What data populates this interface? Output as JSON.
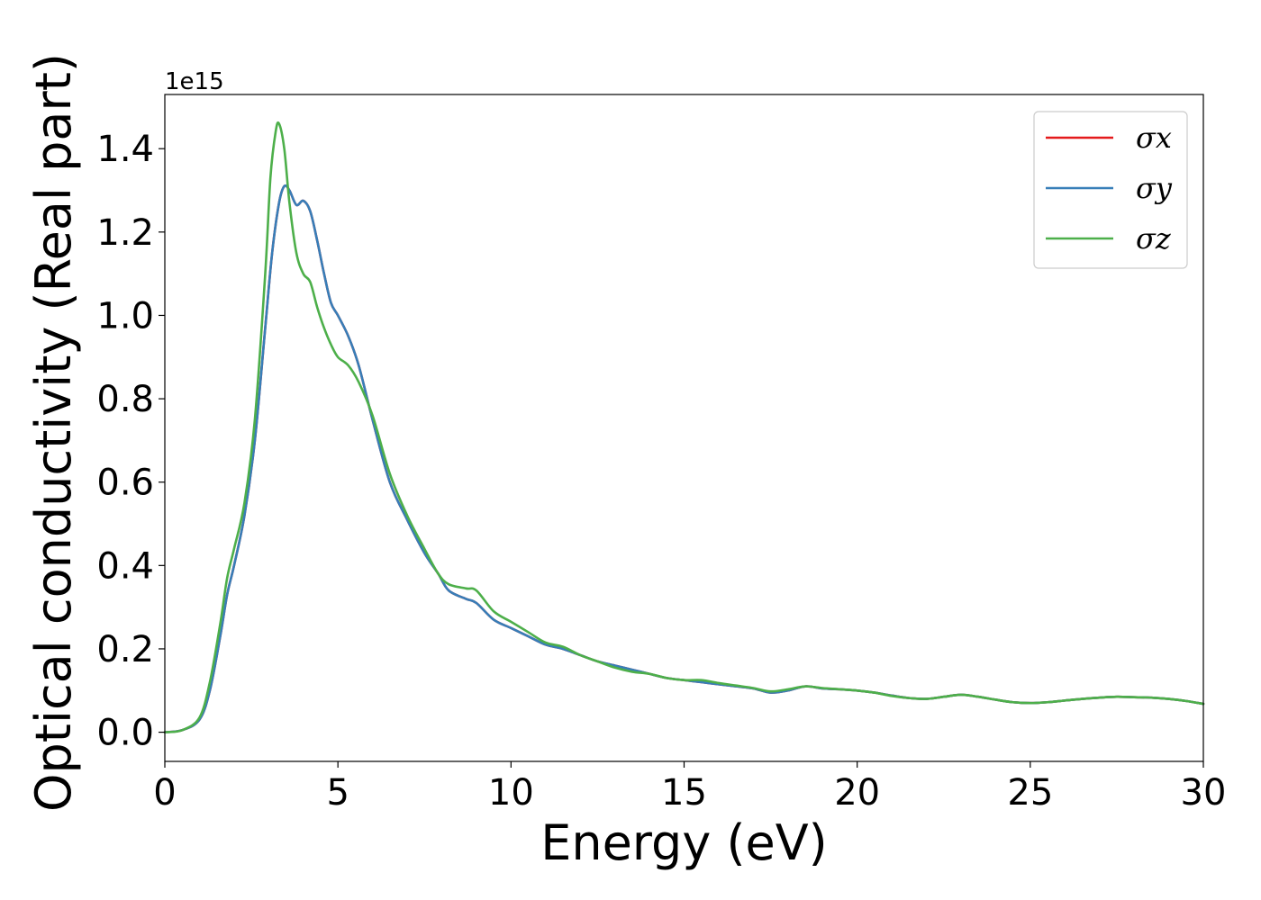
{
  "chart_data": {
    "type": "line",
    "xlabel": "Energy (eV)",
    "ylabel": "Optical conductivity (Real part)",
    "y_offset_label": "1e15",
    "y_scale_factor": 1000000000000000.0,
    "xlim": [
      0,
      30
    ],
    "ylim": [
      -0.07,
      1.53
    ],
    "x_ticks": [
      0,
      5,
      10,
      15,
      20,
      25,
      30
    ],
    "x_tick_labels": [
      "0",
      "5",
      "10",
      "15",
      "20",
      "25",
      "30"
    ],
    "y_ticks": [
      0.0,
      0.2,
      0.4,
      0.6,
      0.8,
      1.0,
      1.2,
      1.4
    ],
    "y_tick_labels": [
      "0.0",
      "0.2",
      "0.4",
      "0.6",
      "0.8",
      "1.0",
      "1.2",
      "1.4"
    ],
    "grid": false,
    "legend_position": "top-right",
    "series": [
      {
        "name": "σx",
        "color": "#e41a1c",
        "x": [
          0,
          0.5,
          1.0,
          1.3,
          1.6,
          1.8,
          2.0,
          2.3,
          2.6,
          2.9,
          3.1,
          3.3,
          3.45,
          3.6,
          3.8,
          4.0,
          4.2,
          4.4,
          4.6,
          4.8,
          5.0,
          5.3,
          5.6,
          6.0,
          6.5,
          7.0,
          7.5,
          7.9,
          8.2,
          8.7,
          9.0,
          9.5,
          10.0,
          10.5,
          11.0,
          11.5,
          12.0,
          12.5,
          13.0,
          13.5,
          14.0,
          14.5,
          15.0,
          15.5,
          16.0,
          16.5,
          17.0,
          17.5,
          18.0,
          18.5,
          19.0,
          19.5,
          20.0,
          20.5,
          21.0,
          21.5,
          22.0,
          22.5,
          23.0,
          23.5,
          24.0,
          24.5,
          25.0,
          25.5,
          26.0,
          26.5,
          27.0,
          27.5,
          28.0,
          28.5,
          29.0,
          29.5,
          30.0
        ],
        "y": [
          0.0,
          0.005,
          0.03,
          0.1,
          0.23,
          0.33,
          0.4,
          0.52,
          0.7,
          0.97,
          1.15,
          1.27,
          1.31,
          1.3,
          1.265,
          1.275,
          1.25,
          1.18,
          1.1,
          1.03,
          1.0,
          0.95,
          0.88,
          0.75,
          0.6,
          0.51,
          0.43,
          0.38,
          0.34,
          0.32,
          0.31,
          0.27,
          0.25,
          0.23,
          0.21,
          0.2,
          0.185,
          0.17,
          0.16,
          0.15,
          0.14,
          0.13,
          0.125,
          0.12,
          0.115,
          0.11,
          0.105,
          0.095,
          0.1,
          0.11,
          0.105,
          0.103,
          0.1,
          0.095,
          0.088,
          0.082,
          0.08,
          0.085,
          0.09,
          0.085,
          0.078,
          0.072,
          0.07,
          0.072,
          0.076,
          0.08,
          0.083,
          0.085,
          0.084,
          0.083,
          0.08,
          0.075,
          0.068
        ]
      },
      {
        "name": "σy",
        "color": "#377eb8",
        "x": [
          0,
          0.5,
          1.0,
          1.3,
          1.6,
          1.8,
          2.0,
          2.3,
          2.6,
          2.9,
          3.1,
          3.3,
          3.45,
          3.6,
          3.8,
          4.0,
          4.2,
          4.4,
          4.6,
          4.8,
          5.0,
          5.3,
          5.6,
          6.0,
          6.5,
          7.0,
          7.5,
          7.9,
          8.2,
          8.7,
          9.0,
          9.5,
          10.0,
          10.5,
          11.0,
          11.5,
          12.0,
          12.5,
          13.0,
          13.5,
          14.0,
          14.5,
          15.0,
          15.5,
          16.0,
          16.5,
          17.0,
          17.5,
          18.0,
          18.5,
          19.0,
          19.5,
          20.0,
          20.5,
          21.0,
          21.5,
          22.0,
          22.5,
          23.0,
          23.5,
          24.0,
          24.5,
          25.0,
          25.5,
          26.0,
          26.5,
          27.0,
          27.5,
          28.0,
          28.5,
          29.0,
          29.5,
          30.0
        ],
        "y": [
          0.0,
          0.005,
          0.03,
          0.1,
          0.23,
          0.33,
          0.4,
          0.52,
          0.7,
          0.97,
          1.15,
          1.27,
          1.31,
          1.3,
          1.265,
          1.275,
          1.25,
          1.18,
          1.1,
          1.03,
          1.0,
          0.95,
          0.88,
          0.75,
          0.6,
          0.51,
          0.43,
          0.38,
          0.34,
          0.32,
          0.31,
          0.27,
          0.25,
          0.23,
          0.21,
          0.2,
          0.185,
          0.17,
          0.16,
          0.15,
          0.14,
          0.13,
          0.125,
          0.12,
          0.115,
          0.11,
          0.105,
          0.095,
          0.1,
          0.11,
          0.105,
          0.103,
          0.1,
          0.095,
          0.088,
          0.082,
          0.08,
          0.085,
          0.09,
          0.085,
          0.078,
          0.072,
          0.07,
          0.072,
          0.076,
          0.08,
          0.083,
          0.085,
          0.084,
          0.083,
          0.08,
          0.075,
          0.068
        ]
      },
      {
        "name": "σz",
        "color": "#4daf4a",
        "x": [
          0,
          0.5,
          1.0,
          1.3,
          1.6,
          1.8,
          2.0,
          2.3,
          2.6,
          2.9,
          3.05,
          3.2,
          3.3,
          3.45,
          3.6,
          3.8,
          4.0,
          4.2,
          4.4,
          4.6,
          4.8,
          5.0,
          5.3,
          5.6,
          6.0,
          6.5,
          7.0,
          7.5,
          7.9,
          8.2,
          8.7,
          9.0,
          9.5,
          10.0,
          10.5,
          11.0,
          11.5,
          12.0,
          12.5,
          13.0,
          13.5,
          14.0,
          14.5,
          15.0,
          15.5,
          16.0,
          16.5,
          17.0,
          17.5,
          18.0,
          18.5,
          19.0,
          19.5,
          20.0,
          20.5,
          21.0,
          21.5,
          22.0,
          22.5,
          23.0,
          23.5,
          24.0,
          24.5,
          25.0,
          25.5,
          26.0,
          26.5,
          27.0,
          27.5,
          28.0,
          28.5,
          29.0,
          29.5,
          30.0
        ],
        "y": [
          0.0,
          0.005,
          0.035,
          0.12,
          0.26,
          0.37,
          0.44,
          0.55,
          0.75,
          1.1,
          1.33,
          1.44,
          1.46,
          1.4,
          1.27,
          1.15,
          1.1,
          1.08,
          1.02,
          0.97,
          0.93,
          0.9,
          0.88,
          0.84,
          0.76,
          0.62,
          0.52,
          0.44,
          0.38,
          0.355,
          0.345,
          0.34,
          0.29,
          0.265,
          0.24,
          0.215,
          0.205,
          0.185,
          0.17,
          0.155,
          0.145,
          0.14,
          0.13,
          0.125,
          0.125,
          0.118,
          0.112,
          0.106,
          0.098,
          0.103,
          0.11,
          0.106,
          0.103,
          0.1,
          0.095,
          0.087,
          0.082,
          0.08,
          0.085,
          0.09,
          0.085,
          0.078,
          0.072,
          0.07,
          0.072,
          0.076,
          0.08,
          0.083,
          0.085,
          0.084,
          0.083,
          0.08,
          0.075,
          0.068
        ]
      }
    ]
  }
}
